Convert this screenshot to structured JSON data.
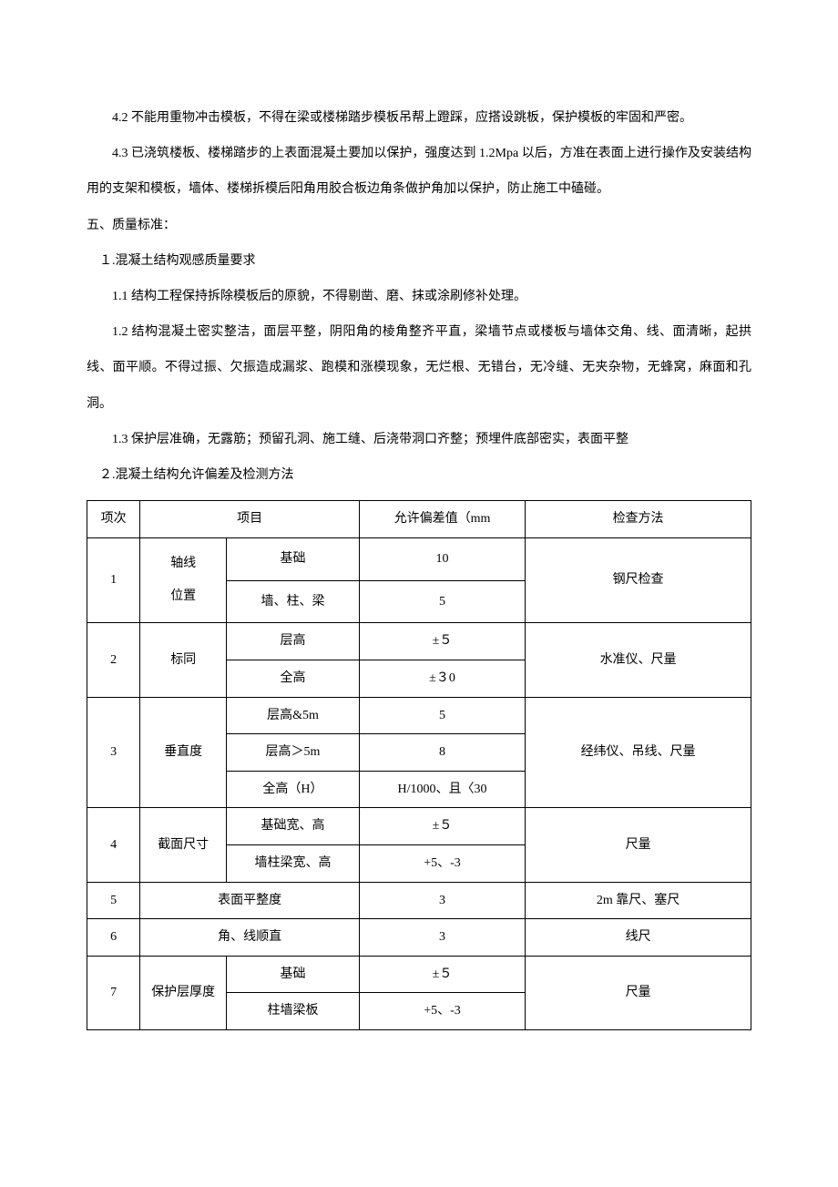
{
  "paragraphs": {
    "p42": "4.2  不能用重物冲击模板，不得在梁或楼梯踏步模板吊帮上蹬踩，应搭设跳板，保护模板的牢固和严密。",
    "p43": "4.3  已浇筑楼板、楼梯踏步的上表面混凝土要加以保护，强度达到 1.2Mpa 以后，方准在表面上进行操作及安装结构用的支架和模板，墙体、楼梯拆模后阳角用胶合板边角条做护角加以保护，防止施工中磕碰。",
    "h5": "五、质量标准：",
    "s1": "１.混凝土结构观感质量要求",
    "p11": "1.1  结构工程保持拆除模板后的原貌，不得剔凿、磨、抹或涂刷修补处理。",
    "p12": "1.2  结构混凝土密实整洁，面层平整，阴阳角的棱角整齐平直，梁墙节点或楼板与墙体交角、线、面清晰，起拱线、面平顺。不得过振、欠振造成漏浆、跑模和涨模现象，无烂根、无错台，无冷缝、无夹杂物，无蜂窝，麻面和孔洞。",
    "p13": "1.3  保护层准确，无露筋；预留孔洞、施工缝、后浇带洞口齐整；预埋件底部密实，表面平整",
    "s2": "２.混凝土结构允许偏差及检测方法"
  },
  "table": {
    "header": {
      "seq": "项次",
      "item": "项目",
      "dev": "允许偏差值（mm",
      "method": "检查方法"
    },
    "rows": {
      "r1": {
        "seq": "1",
        "sub1": "轴线\n位置",
        "a": "基础",
        "b": "墙、柱、梁",
        "da": "10",
        "db": "5",
        "method": "钢尺检查"
      },
      "r2": {
        "seq": "2",
        "sub1": "标同",
        "a": "层高",
        "b": "全高",
        "da": "±５",
        "db": "±３0",
        "method": "水准仪、尺量"
      },
      "r3": {
        "seq": "3",
        "sub1": "垂直度",
        "a": "层高&5m",
        "b": "层高＞5m",
        "c": "全高（H）",
        "da": "5",
        "db": "8",
        "dc": "H/1000、且〈30",
        "method": "经纬仪、吊线、尺量"
      },
      "r4": {
        "seq": "4",
        "sub1": "截面尺寸",
        "a": "基础宽、高",
        "b": "墙柱梁宽、高",
        "da": "±５",
        "db": "+5、-3",
        "method": "尺量"
      },
      "r5": {
        "seq": "5",
        "item": "表面平整度",
        "dev": "3",
        "method": "2m 靠尺、塞尺"
      },
      "r6": {
        "seq": "6",
        "item": "角、线顺直",
        "dev": "3",
        "method": "线尺"
      },
      "r7": {
        "seq": "7",
        "sub1": "保护层厚度",
        "a": "基础",
        "b": "柱墙梁板",
        "da": "±５",
        "db": "+5、-3",
        "method": "尺量"
      }
    }
  }
}
